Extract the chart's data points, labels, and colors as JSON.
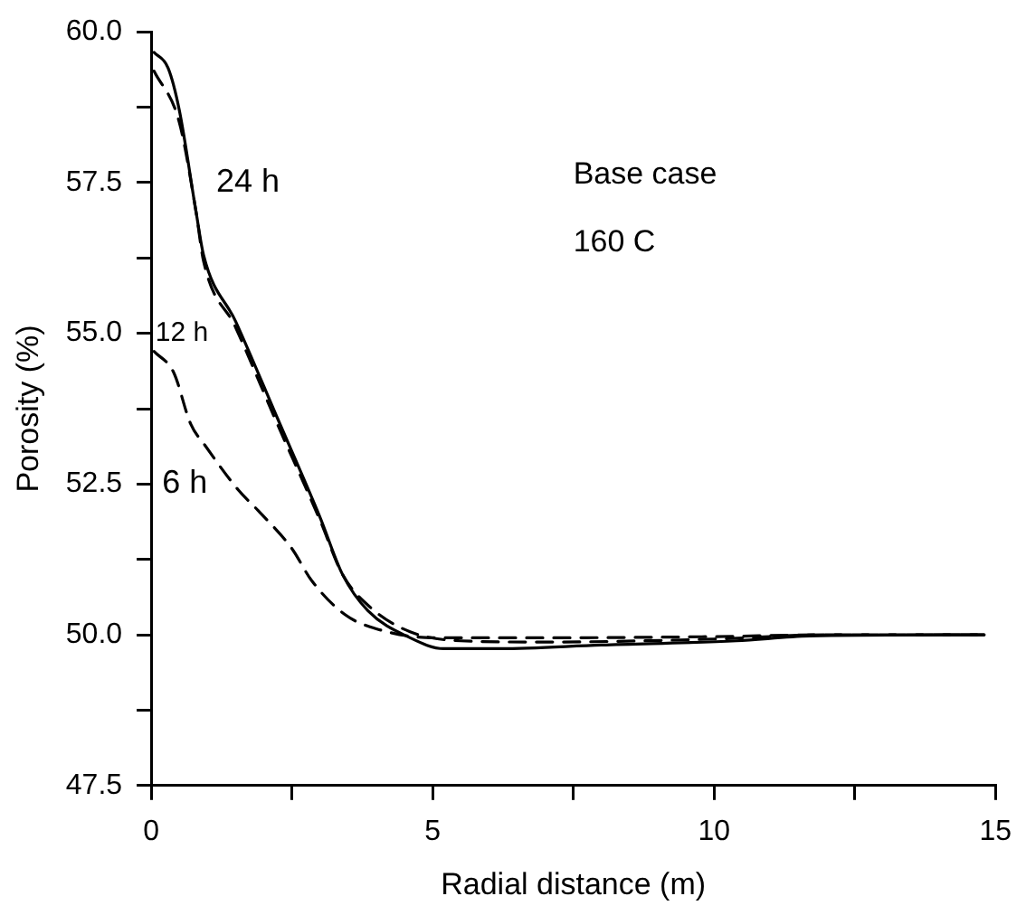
{
  "chart_data": {
    "type": "line",
    "xlabel": "Radial distance (m)",
    "ylabel": "Porosity (%)",
    "xlim": [
      0,
      15
    ],
    "xticks": [
      0,
      {
        "value": 2.5,
        "label": null
      },
      5,
      {
        "value": 7.5,
        "label": null
      },
      10,
      {
        "value": 12.5,
        "label": null
      },
      15
    ],
    "ylim": [
      47.5,
      60
    ],
    "yticks": [
      47.5,
      {
        "value": 48.75,
        "label": null
      },
      {
        "value": 50,
        "label": "50.0"
      },
      {
        "value": 51.25,
        "label": null
      },
      52.5,
      {
        "value": 53.75,
        "label": null
      },
      {
        "value": 55,
        "label": "55.0"
      },
      {
        "value": 56.25,
        "label": null
      },
      57.5,
      {
        "value": 58.75,
        "label": null
      },
      {
        "value": 60,
        "label": "60.0"
      }
    ],
    "grid": false,
    "legend": false,
    "marker": "none",
    "series": [
      {
        "color": "#000000",
        "line_style": "solid",
        "x": [
          0.05,
          0.3,
          0.5,
          0.8,
          0.93,
          1.5,
          2.24,
          3.0,
          3.4,
          3.85,
          4.6,
          5.2,
          6.2,
          8,
          10.4,
          11.7,
          14.8
        ],
        "values": [
          59.66,
          59.4,
          58.7,
          57.0,
          56.3,
          55.2,
          53.6,
          51.95,
          51.0,
          50.4,
          49.95,
          49.77,
          49.77,
          49.83,
          49.9,
          49.98,
          50.0
        ]
      },
      {
        "color": "#000000",
        "line_style": "dashed",
        "x": [
          0.05,
          0.5,
          0.8,
          0.93,
          1.5,
          2.24,
          3.0,
          3.4,
          3.9,
          4.6,
          5.5,
          7,
          10,
          12,
          14.8
        ],
        "values": [
          59.35,
          58.5,
          57.0,
          56.2,
          55.1,
          53.5,
          51.9,
          51.0,
          50.45,
          50.05,
          49.9,
          49.88,
          49.93,
          50.0,
          50.0
        ]
      },
      {
        "color": "#000000",
        "line_style": "dashed",
        "x": [
          0.05,
          0.4,
          0.7,
          0.95,
          1.55,
          1.9,
          2.5,
          2.85,
          3.45,
          4,
          5,
          7,
          10,
          12,
          14.8
        ],
        "values": [
          54.7,
          54.35,
          53.5,
          53.15,
          52.4,
          52.06,
          51.43,
          50.9,
          50.33,
          50.1,
          49.95,
          49.95,
          49.97,
          50.0,
          50.0
        ]
      }
    ],
    "annotations": [
      "24 h",
      "12 h",
      "6 h",
      "Base case",
      "160 C"
    ]
  }
}
